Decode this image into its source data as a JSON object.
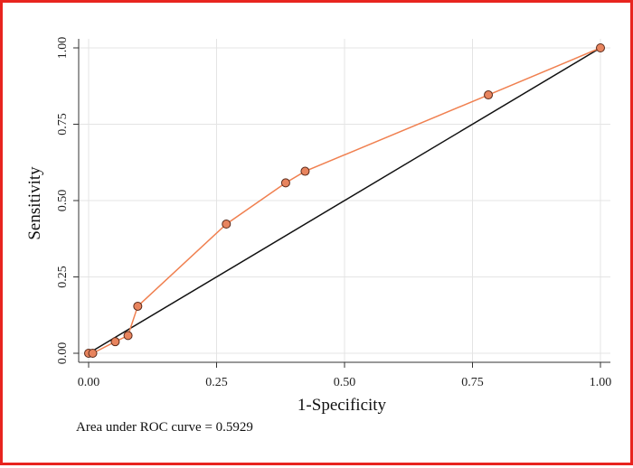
{
  "chart_data": {
    "type": "line",
    "title": "",
    "xlabel": "1-Specificity",
    "ylabel": "Sensitivity",
    "xlim": [
      0,
      1
    ],
    "ylim": [
      0,
      1
    ],
    "x_ticks": [
      "0.00",
      "0.25",
      "0.50",
      "0.75",
      "1.00"
    ],
    "y_ticks": [
      "0.00",
      "0.25",
      "0.50",
      "0.75",
      "1.00"
    ],
    "grid": true,
    "series": [
      {
        "color": "#f08050",
        "marker_fill": "#e8845e",
        "marker_edge": "#5a2a1a",
        "points": [
          {
            "x": 0.0,
            "y": 0.0
          },
          {
            "x": 0.008,
            "y": 0.0
          },
          {
            "x": 0.052,
            "y": 0.038
          },
          {
            "x": 0.077,
            "y": 0.058
          },
          {
            "x": 0.096,
            "y": 0.154
          },
          {
            "x": 0.269,
            "y": 0.423
          },
          {
            "x": 0.385,
            "y": 0.558
          },
          {
            "x": 0.423,
            "y": 0.596
          },
          {
            "x": 0.781,
            "y": 0.846
          },
          {
            "x": 1.0,
            "y": 1.0
          }
        ]
      }
    ],
    "reference_line": {
      "from": [
        0,
        0
      ],
      "to": [
        1,
        1
      ],
      "color": "#111111"
    },
    "note": "Area under ROC curve = 0.5929"
  }
}
